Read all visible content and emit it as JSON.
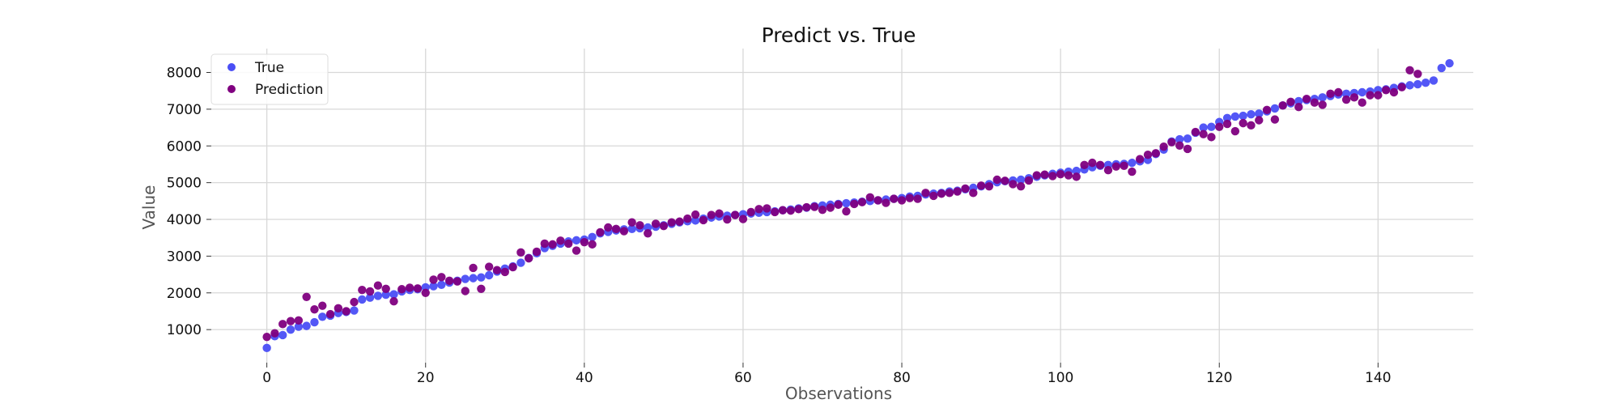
{
  "chart_data": {
    "type": "scatter",
    "title": "Predict vs. True",
    "xlabel": "Observations",
    "ylabel": "Value",
    "xlim": [
      -7,
      152
    ],
    "ylim": [
      100,
      8650
    ],
    "xticks": [
      0,
      20,
      40,
      60,
      80,
      100,
      120,
      140
    ],
    "yticks": [
      1000,
      2000,
      3000,
      4000,
      5000,
      6000,
      7000,
      8000
    ],
    "grid": true,
    "legend_position": "top-left",
    "series": [
      {
        "name": "True",
        "color": "#4a4ef5",
        "values": [
          500,
          820,
          850,
          1000,
          1080,
          1100,
          1200,
          1350,
          1380,
          1450,
          1480,
          1520,
          1820,
          1870,
          1920,
          1950,
          1960,
          2040,
          2080,
          2100,
          2150,
          2180,
          2220,
          2280,
          2330,
          2380,
          2400,
          2420,
          2480,
          2580,
          2660,
          2720,
          2820,
          2950,
          3080,
          3220,
          3280,
          3340,
          3400,
          3430,
          3450,
          3520,
          3620,
          3660,
          3700,
          3730,
          3740,
          3760,
          3780,
          3800,
          3840,
          3880,
          3920,
          3950,
          3970,
          4020,
          4050,
          4080,
          4100,
          4120,
          4140,
          4160,
          4180,
          4200,
          4220,
          4250,
          4270,
          4300,
          4320,
          4360,
          4380,
          4400,
          4420,
          4440,
          4460,
          4480,
          4500,
          4520,
          4540,
          4560,
          4580,
          4620,
          4640,
          4680,
          4700,
          4720,
          4760,
          4780,
          4820,
          4860,
          4900,
          4960,
          5010,
          5040,
          5060,
          5080,
          5120,
          5160,
          5200,
          5240,
          5270,
          5300,
          5320,
          5360,
          5420,
          5460,
          5480,
          5500,
          5510,
          5540,
          5580,
          5620,
          5780,
          5900,
          6120,
          6180,
          6200,
          6360,
          6500,
          6520,
          6650,
          6760,
          6800,
          6820,
          6860,
          6880,
          6940,
          7020,
          7100,
          7160,
          7220,
          7250,
          7280,
          7320,
          7360,
          7400,
          7420,
          7440,
          7460,
          7480,
          7520,
          7540,
          7580,
          7620,
          7650,
          7680,
          7720,
          7780,
          8120,
          8250
        ]
      },
      {
        "name": "Prediction",
        "color": "#800080",
        "values": [
          800,
          900,
          1150,
          1230,
          1250,
          1890,
          1550,
          1650,
          1420,
          1580,
          1500,
          1750,
          2080,
          2040,
          2200,
          2110,
          1770,
          2100,
          2140,
          2120,
          2000,
          2360,
          2430,
          2330,
          2310,
          2050,
          2680,
          2110,
          2710,
          2620,
          2570,
          2700,
          3100,
          2940,
          3120,
          3340,
          3320,
          3420,
          3340,
          3150,
          3380,
          3320,
          3650,
          3780,
          3740,
          3680,
          3920,
          3840,
          3620,
          3880,
          3820,
          3920,
          3940,
          4020,
          4130,
          3980,
          4120,
          4160,
          4000,
          4120,
          4010,
          4200,
          4280,
          4300,
          4200,
          4250,
          4240,
          4280,
          4330,
          4340,
          4260,
          4320,
          4400,
          4220,
          4420,
          4470,
          4600,
          4520,
          4450,
          4560,
          4520,
          4580,
          4560,
          4720,
          4640,
          4700,
          4720,
          4760,
          4840,
          4720,
          4920,
          4900,
          5080,
          5050,
          4960,
          4900,
          5060,
          5200,
          5220,
          5180,
          5230,
          5200,
          5160,
          5480,
          5540,
          5480,
          5340,
          5440,
          5460,
          5300,
          5640,
          5760,
          5800,
          5980,
          6100,
          6010,
          5920,
          6380,
          6320,
          6240,
          6520,
          6600,
          6400,
          6620,
          6560,
          6700,
          6980,
          6720,
          7100,
          7200,
          7060,
          7280,
          7180,
          7120,
          7420,
          7460,
          7260,
          7320,
          7180,
          7380,
          7380,
          7520,
          7460,
          7600,
          8060,
          7960
        ]
      }
    ]
  }
}
